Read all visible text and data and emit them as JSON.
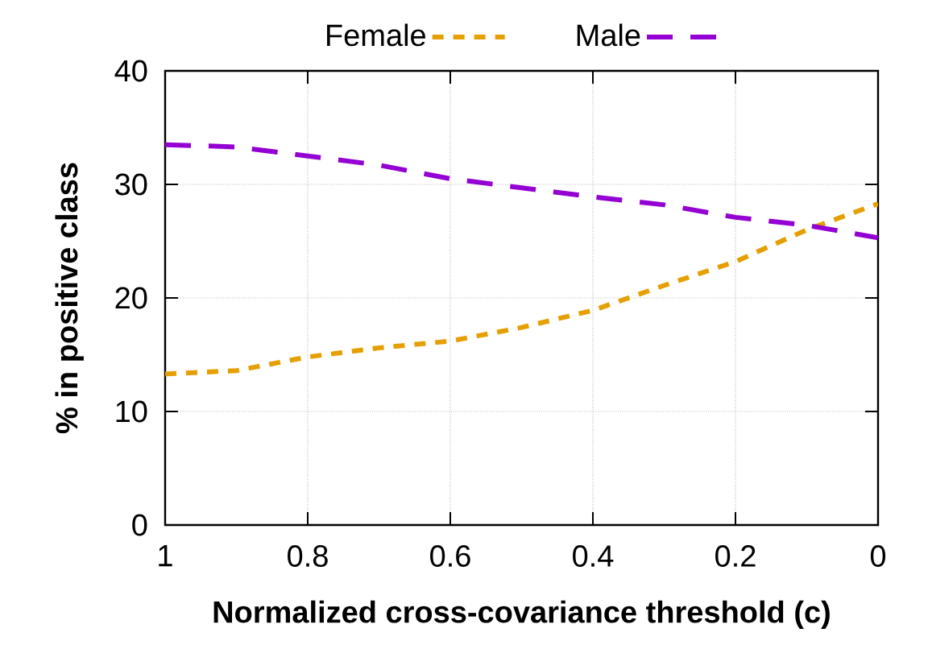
{
  "chart_data": {
    "type": "line",
    "xlabel": "Normalized cross-covariance threshold (c)",
    "ylabel": "% in positive class",
    "x": [
      1,
      0.9,
      0.8,
      0.7,
      0.6,
      0.5,
      0.4,
      0.3,
      0.2,
      0.1,
      0
    ],
    "series": [
      {
        "name": "Female",
        "color": "#e69f00",
        "line_style": "dotted",
        "values": [
          13.3,
          13.6,
          14.8,
          15.6,
          16.2,
          17.4,
          18.9,
          21.1,
          23.2,
          26.0,
          28.3
        ]
      },
      {
        "name": "Male",
        "color": "#9400d3",
        "line_style": "dashed",
        "values": [
          33.5,
          33.3,
          32.5,
          31.7,
          30.5,
          29.7,
          28.9,
          28.2,
          27.1,
          26.4,
          25.3
        ]
      }
    ],
    "xlim": [
      1,
      0
    ],
    "ylim": [
      0,
      40
    ],
    "xticks": [
      1,
      0.8,
      0.6,
      0.4,
      0.2,
      0
    ],
    "yticks": [
      0,
      10,
      20,
      30,
      40
    ],
    "grid": true,
    "legend": "top",
    "marker": "none"
  }
}
